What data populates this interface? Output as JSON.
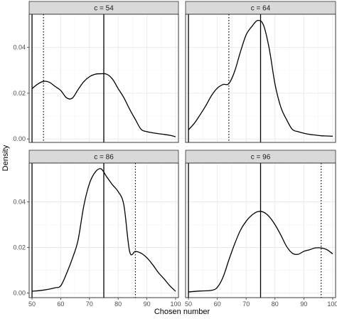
{
  "chart_data": {
    "type": "line",
    "xlabel": "Chosen number",
    "ylabel": "Density",
    "xlim": [
      49,
      101
    ],
    "x_ticks": [
      50,
      60,
      70,
      80,
      90,
      100
    ],
    "y_ticks_top": [
      0.0,
      0.02,
      0.04
    ],
    "y_ticks_top_labels": [
      "0.00",
      "0.02",
      "0.04"
    ],
    "y_ticks_bottom": [
      0.0,
      0.02,
      0.04
    ],
    "y_ticks_bottom_labels": [
      "0.00",
      "0.02",
      "0.04"
    ],
    "ylim_top": [
      -0.0015,
      0.0545
    ],
    "ylim_bottom": [
      -0.002,
      0.057
    ],
    "grid": true,
    "panels": [
      {
        "label": "c = 54",
        "c": 54,
        "solid_lines": [
          50,
          75
        ],
        "dotted_line": 54,
        "x": [
          50,
          52,
          54,
          56,
          58,
          60,
          62,
          64,
          66,
          68,
          70,
          72,
          74,
          76,
          78,
          80,
          82,
          84,
          86,
          88,
          90,
          92,
          94,
          96,
          98,
          100
        ],
        "y": [
          0.022,
          0.024,
          0.0252,
          0.0248,
          0.023,
          0.0212,
          0.018,
          0.0178,
          0.0215,
          0.025,
          0.0272,
          0.0283,
          0.0285,
          0.0283,
          0.0262,
          0.022,
          0.018,
          0.013,
          0.0085,
          0.0042,
          0.0032,
          0.0027,
          0.0023,
          0.002,
          0.0016,
          0.001
        ]
      },
      {
        "label": "c = 64",
        "c": 64,
        "solid_lines": [
          50,
          75
        ],
        "dotted_line": 64,
        "x": [
          50,
          52,
          54,
          56,
          58,
          60,
          62,
          64,
          66,
          68,
          70,
          72,
          74,
          76,
          78,
          80,
          82,
          84,
          86,
          88,
          90,
          92,
          94,
          96,
          98,
          100
        ],
        "y": [
          0.004,
          0.0068,
          0.0105,
          0.0145,
          0.019,
          0.0222,
          0.0238,
          0.0242,
          0.0295,
          0.038,
          0.0455,
          0.0492,
          0.0518,
          0.0498,
          0.0395,
          0.024,
          0.014,
          0.0085,
          0.0042,
          0.0032,
          0.0025,
          0.002,
          0.0017,
          0.0014,
          0.0013,
          0.0012
        ]
      },
      {
        "label": "c = 86",
        "c": 86,
        "solid_lines": [
          50,
          75
        ],
        "dotted_line": 86,
        "x": [
          50,
          54,
          58,
          60,
          62,
          64,
          66,
          68,
          70,
          72,
          74,
          76,
          78,
          80,
          82,
          84,
          86,
          88,
          90,
          92,
          94,
          96,
          98,
          100
        ],
        "y": [
          0.0008,
          0.0013,
          0.0023,
          0.0032,
          0.0085,
          0.015,
          0.023,
          0.038,
          0.048,
          0.053,
          0.0545,
          0.051,
          0.0475,
          0.0445,
          0.0385,
          0.0182,
          0.0183,
          0.0175,
          0.0155,
          0.0125,
          0.009,
          0.0062,
          0.0032,
          0.0008
        ]
      },
      {
        "label": "c = 96",
        "c": 96,
        "solid_lines": [
          50,
          75
        ],
        "dotted_line": 96,
        "x": [
          50,
          54,
          58,
          60,
          62,
          64,
          66,
          68,
          70,
          72,
          74,
          76,
          78,
          80,
          82,
          84,
          86,
          88,
          90,
          92,
          94,
          96,
          98,
          100
        ],
        "y": [
          0.0005,
          0.0009,
          0.0012,
          0.0025,
          0.007,
          0.0145,
          0.0215,
          0.0275,
          0.0315,
          0.0342,
          0.0357,
          0.0355,
          0.0335,
          0.03,
          0.0255,
          0.0205,
          0.0175,
          0.017,
          0.0183,
          0.019,
          0.0198,
          0.0198,
          0.019,
          0.0172
        ]
      }
    ]
  }
}
